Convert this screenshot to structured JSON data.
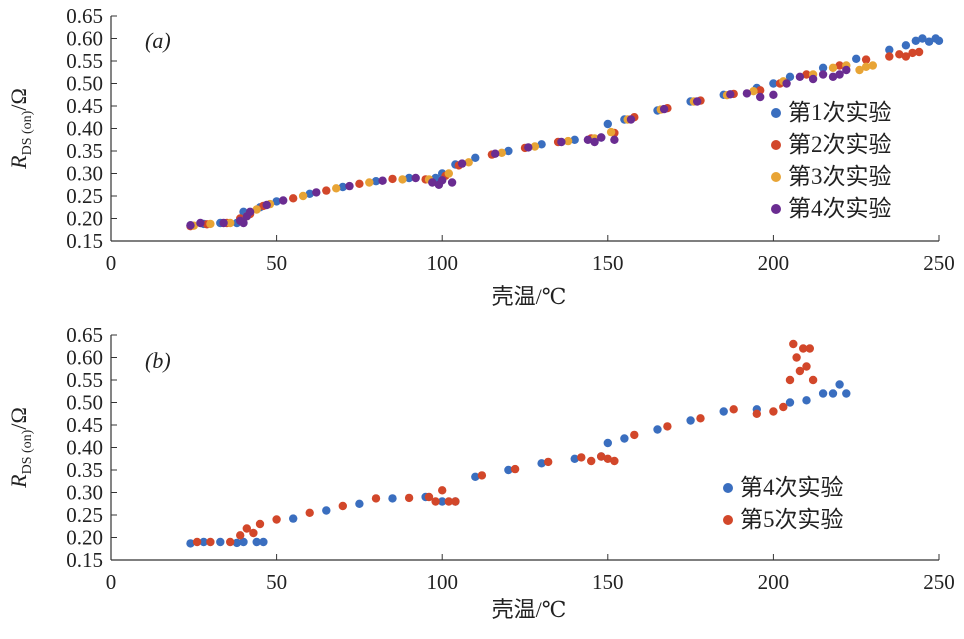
{
  "chart_data": [
    {
      "type": "scatter",
      "panel_label": "(a)",
      "xlabel": "壳温/℃",
      "ylabel_main": "R",
      "ylabel_sub": "DS (on)",
      "ylabel_unit": "/Ω",
      "xlim": [
        0,
        250
      ],
      "ylim": [
        0.15,
        0.65
      ],
      "xticks": [
        "0",
        "50",
        "100",
        "150",
        "200",
        "250"
      ],
      "yticks": [
        "0.15",
        "0.20",
        "0.25",
        "0.30",
        "0.35",
        "0.40",
        "0.45",
        "0.50",
        "0.55",
        "0.60",
        "0.65"
      ],
      "grid": false,
      "legend_position": "right",
      "series": [
        {
          "name": "第1次实验",
          "color": "#3a6ebf",
          "points": [
            [
              24,
              0.185
            ],
            [
              28,
              0.188
            ],
            [
              33,
              0.19
            ],
            [
              38,
              0.19
            ],
            [
              40,
              0.215
            ],
            [
              45,
              0.225
            ],
            [
              50,
              0.238
            ],
            [
              60,
              0.255
            ],
            [
              70,
              0.27
            ],
            [
              80,
              0.283
            ],
            [
              90,
              0.29
            ],
            [
              98,
              0.29
            ],
            [
              100,
              0.3
            ],
            [
              104,
              0.32
            ],
            [
              110,
              0.335
            ],
            [
              120,
              0.35
            ],
            [
              130,
              0.365
            ],
            [
              140,
              0.375
            ],
            [
              148,
              0.38
            ],
            [
              150,
              0.41
            ],
            [
              155,
              0.42
            ],
            [
              165,
              0.44
            ],
            [
              175,
              0.46
            ],
            [
              185,
              0.475
            ],
            [
              195,
              0.49
            ],
            [
              200,
              0.5
            ],
            [
              205,
              0.515
            ],
            [
              215,
              0.535
            ],
            [
              225,
              0.555
            ],
            [
              235,
              0.575
            ],
            [
              240,
              0.585
            ],
            [
              243,
              0.595
            ],
            [
              245,
              0.6
            ],
            [
              247,
              0.593
            ],
            [
              249,
              0.6
            ],
            [
              250,
              0.595
            ]
          ]
        },
        {
          "name": "第2次实验",
          "color": "#d2472a",
          "points": [
            [
              24,
              0.183
            ],
            [
              29,
              0.187
            ],
            [
              35,
              0.19
            ],
            [
              39,
              0.2
            ],
            [
              42,
              0.21
            ],
            [
              46,
              0.228
            ],
            [
              55,
              0.245
            ],
            [
              65,
              0.262
            ],
            [
              75,
              0.277
            ],
            [
              85,
              0.288
            ],
            [
              95,
              0.287
            ],
            [
              101,
              0.295
            ],
            [
              105,
              0.318
            ],
            [
              115,
              0.342
            ],
            [
              125,
              0.357
            ],
            [
              135,
              0.37
            ],
            [
              145,
              0.378
            ],
            [
              152,
              0.39
            ],
            [
              158,
              0.425
            ],
            [
              168,
              0.445
            ],
            [
              178,
              0.462
            ],
            [
              188,
              0.477
            ],
            [
              196,
              0.485
            ],
            [
              202,
              0.5
            ],
            [
              210,
              0.52
            ],
            [
              220,
              0.54
            ],
            [
              228,
              0.553
            ],
            [
              235,
              0.56
            ],
            [
              238,
              0.565
            ],
            [
              240,
              0.56
            ],
            [
              242,
              0.568
            ],
            [
              244,
              0.57
            ]
          ]
        },
        {
          "name": "第3次实验",
          "color": "#e8a435",
          "points": [
            [
              25,
              0.184
            ],
            [
              30,
              0.188
            ],
            [
              36,
              0.19
            ],
            [
              41,
              0.205
            ],
            [
              44,
              0.22
            ],
            [
              48,
              0.232
            ],
            [
              58,
              0.25
            ],
            [
              68,
              0.267
            ],
            [
              78,
              0.28
            ],
            [
              88,
              0.287
            ],
            [
              96,
              0.287
            ],
            [
              102,
              0.3
            ],
            [
              108,
              0.325
            ],
            [
              118,
              0.346
            ],
            [
              128,
              0.36
            ],
            [
              138,
              0.372
            ],
            [
              146,
              0.378
            ],
            [
              151,
              0.392
            ],
            [
              156,
              0.42
            ],
            [
              166,
              0.442
            ],
            [
              176,
              0.46
            ],
            [
              186,
              0.474
            ],
            [
              194,
              0.483
            ],
            [
              203,
              0.505
            ],
            [
              212,
              0.52
            ],
            [
              218,
              0.535
            ],
            [
              222,
              0.54
            ],
            [
              226,
              0.53
            ],
            [
              228,
              0.537
            ],
            [
              230,
              0.54
            ]
          ]
        },
        {
          "name": "第4次实验",
          "color": "#6a2c91",
          "points": [
            [
              24,
              0.185
            ],
            [
              27,
              0.19
            ],
            [
              34,
              0.19
            ],
            [
              39,
              0.195
            ],
            [
              40,
              0.19
            ],
            [
              41,
              0.205
            ],
            [
              42,
              0.215
            ],
            [
              47,
              0.23
            ],
            [
              52,
              0.24
            ],
            [
              62,
              0.258
            ],
            [
              72,
              0.272
            ],
            [
              82,
              0.284
            ],
            [
              92,
              0.29
            ],
            [
              97,
              0.28
            ],
            [
              99,
              0.275
            ],
            [
              100,
              0.285
            ],
            [
              103,
              0.28
            ],
            [
              106,
              0.322
            ],
            [
              116,
              0.344
            ],
            [
              126,
              0.358
            ],
            [
              136,
              0.37
            ],
            [
              144,
              0.375
            ],
            [
              146,
              0.37
            ],
            [
              148,
              0.38
            ],
            [
              152,
              0.375
            ],
            [
              157,
              0.42
            ],
            [
              167,
              0.443
            ],
            [
              177,
              0.46
            ],
            [
              187,
              0.476
            ],
            [
              192,
              0.478
            ],
            [
              196,
              0.47
            ],
            [
              200,
              0.475
            ],
            [
              204,
              0.5
            ],
            [
              208,
              0.515
            ],
            [
              212,
              0.51
            ],
            [
              215,
              0.52
            ],
            [
              218,
              0.515
            ],
            [
              220,
              0.52
            ],
            [
              222,
              0.53
            ]
          ]
        }
      ]
    },
    {
      "type": "scatter",
      "panel_label": "(b)",
      "xlabel": "壳温/℃",
      "ylabel_main": "R",
      "ylabel_sub": "DS (on)",
      "ylabel_unit": "/Ω",
      "xlim": [
        0,
        250
      ],
      "ylim": [
        0.15,
        0.65
      ],
      "xticks": [
        "0",
        "50",
        "100",
        "150",
        "200",
        "250"
      ],
      "yticks": [
        "0.15",
        "0.20",
        "0.25",
        "0.30",
        "0.35",
        "0.40",
        "0.45",
        "0.50",
        "0.55",
        "0.60",
        "0.65"
      ],
      "grid": false,
      "legend_position": "right",
      "series": [
        {
          "name": "第4次实验",
          "color": "#3a6ebf",
          "points": [
            [
              24,
              0.187
            ],
            [
              28,
              0.19
            ],
            [
              33,
              0.19
            ],
            [
              38,
              0.188
            ],
            [
              40,
              0.19
            ],
            [
              44,
              0.19
            ],
            [
              46,
              0.19
            ],
            [
              55,
              0.242
            ],
            [
              65,
              0.26
            ],
            [
              75,
              0.275
            ],
            [
              85,
              0.287
            ],
            [
              95,
              0.29
            ],
            [
              100,
              0.28
            ],
            [
              104,
              0.28
            ],
            [
              110,
              0.335
            ],
            [
              120,
              0.35
            ],
            [
              130,
              0.365
            ],
            [
              140,
              0.375
            ],
            [
              148,
              0.38
            ],
            [
              150,
              0.41
            ],
            [
              155,
              0.42
            ],
            [
              165,
              0.44
            ],
            [
              175,
              0.46
            ],
            [
              185,
              0.48
            ],
            [
              195,
              0.485
            ],
            [
              205,
              0.5
            ],
            [
              210,
              0.505
            ],
            [
              215,
              0.52
            ],
            [
              218,
              0.52
            ],
            [
              220,
              0.54
            ],
            [
              222,
              0.52
            ]
          ]
        },
        {
          "name": "第5次实验",
          "color": "#d2472a",
          "points": [
            [
              26,
              0.19
            ],
            [
              30,
              0.19
            ],
            [
              36,
              0.19
            ],
            [
              39,
              0.205
            ],
            [
              41,
              0.22
            ],
            [
              43,
              0.21
            ],
            [
              45,
              0.23
            ],
            [
              50,
              0.24
            ],
            [
              60,
              0.255
            ],
            [
              70,
              0.27
            ],
            [
              80,
              0.287
            ],
            [
              90,
              0.288
            ],
            [
              96,
              0.29
            ],
            [
              98,
              0.28
            ],
            [
              100,
              0.305
            ],
            [
              102,
              0.28
            ],
            [
              104,
              0.28
            ],
            [
              112,
              0.338
            ],
            [
              122,
              0.352
            ],
            [
              132,
              0.368
            ],
            [
              142,
              0.378
            ],
            [
              145,
              0.37
            ],
            [
              148,
              0.38
            ],
            [
              150,
              0.375
            ],
            [
              152,
              0.37
            ],
            [
              158,
              0.428
            ],
            [
              168,
              0.447
            ],
            [
              178,
              0.465
            ],
            [
              188,
              0.485
            ],
            [
              195,
              0.475
            ],
            [
              200,
              0.48
            ],
            [
              203,
              0.49
            ],
            [
              205,
              0.55
            ],
            [
              206,
              0.63
            ],
            [
              207,
              0.6
            ],
            [
              208,
              0.57
            ],
            [
              209,
              0.62
            ],
            [
              210,
              0.58
            ],
            [
              211,
              0.62
            ],
            [
              212,
              0.55
            ]
          ]
        }
      ]
    }
  ]
}
